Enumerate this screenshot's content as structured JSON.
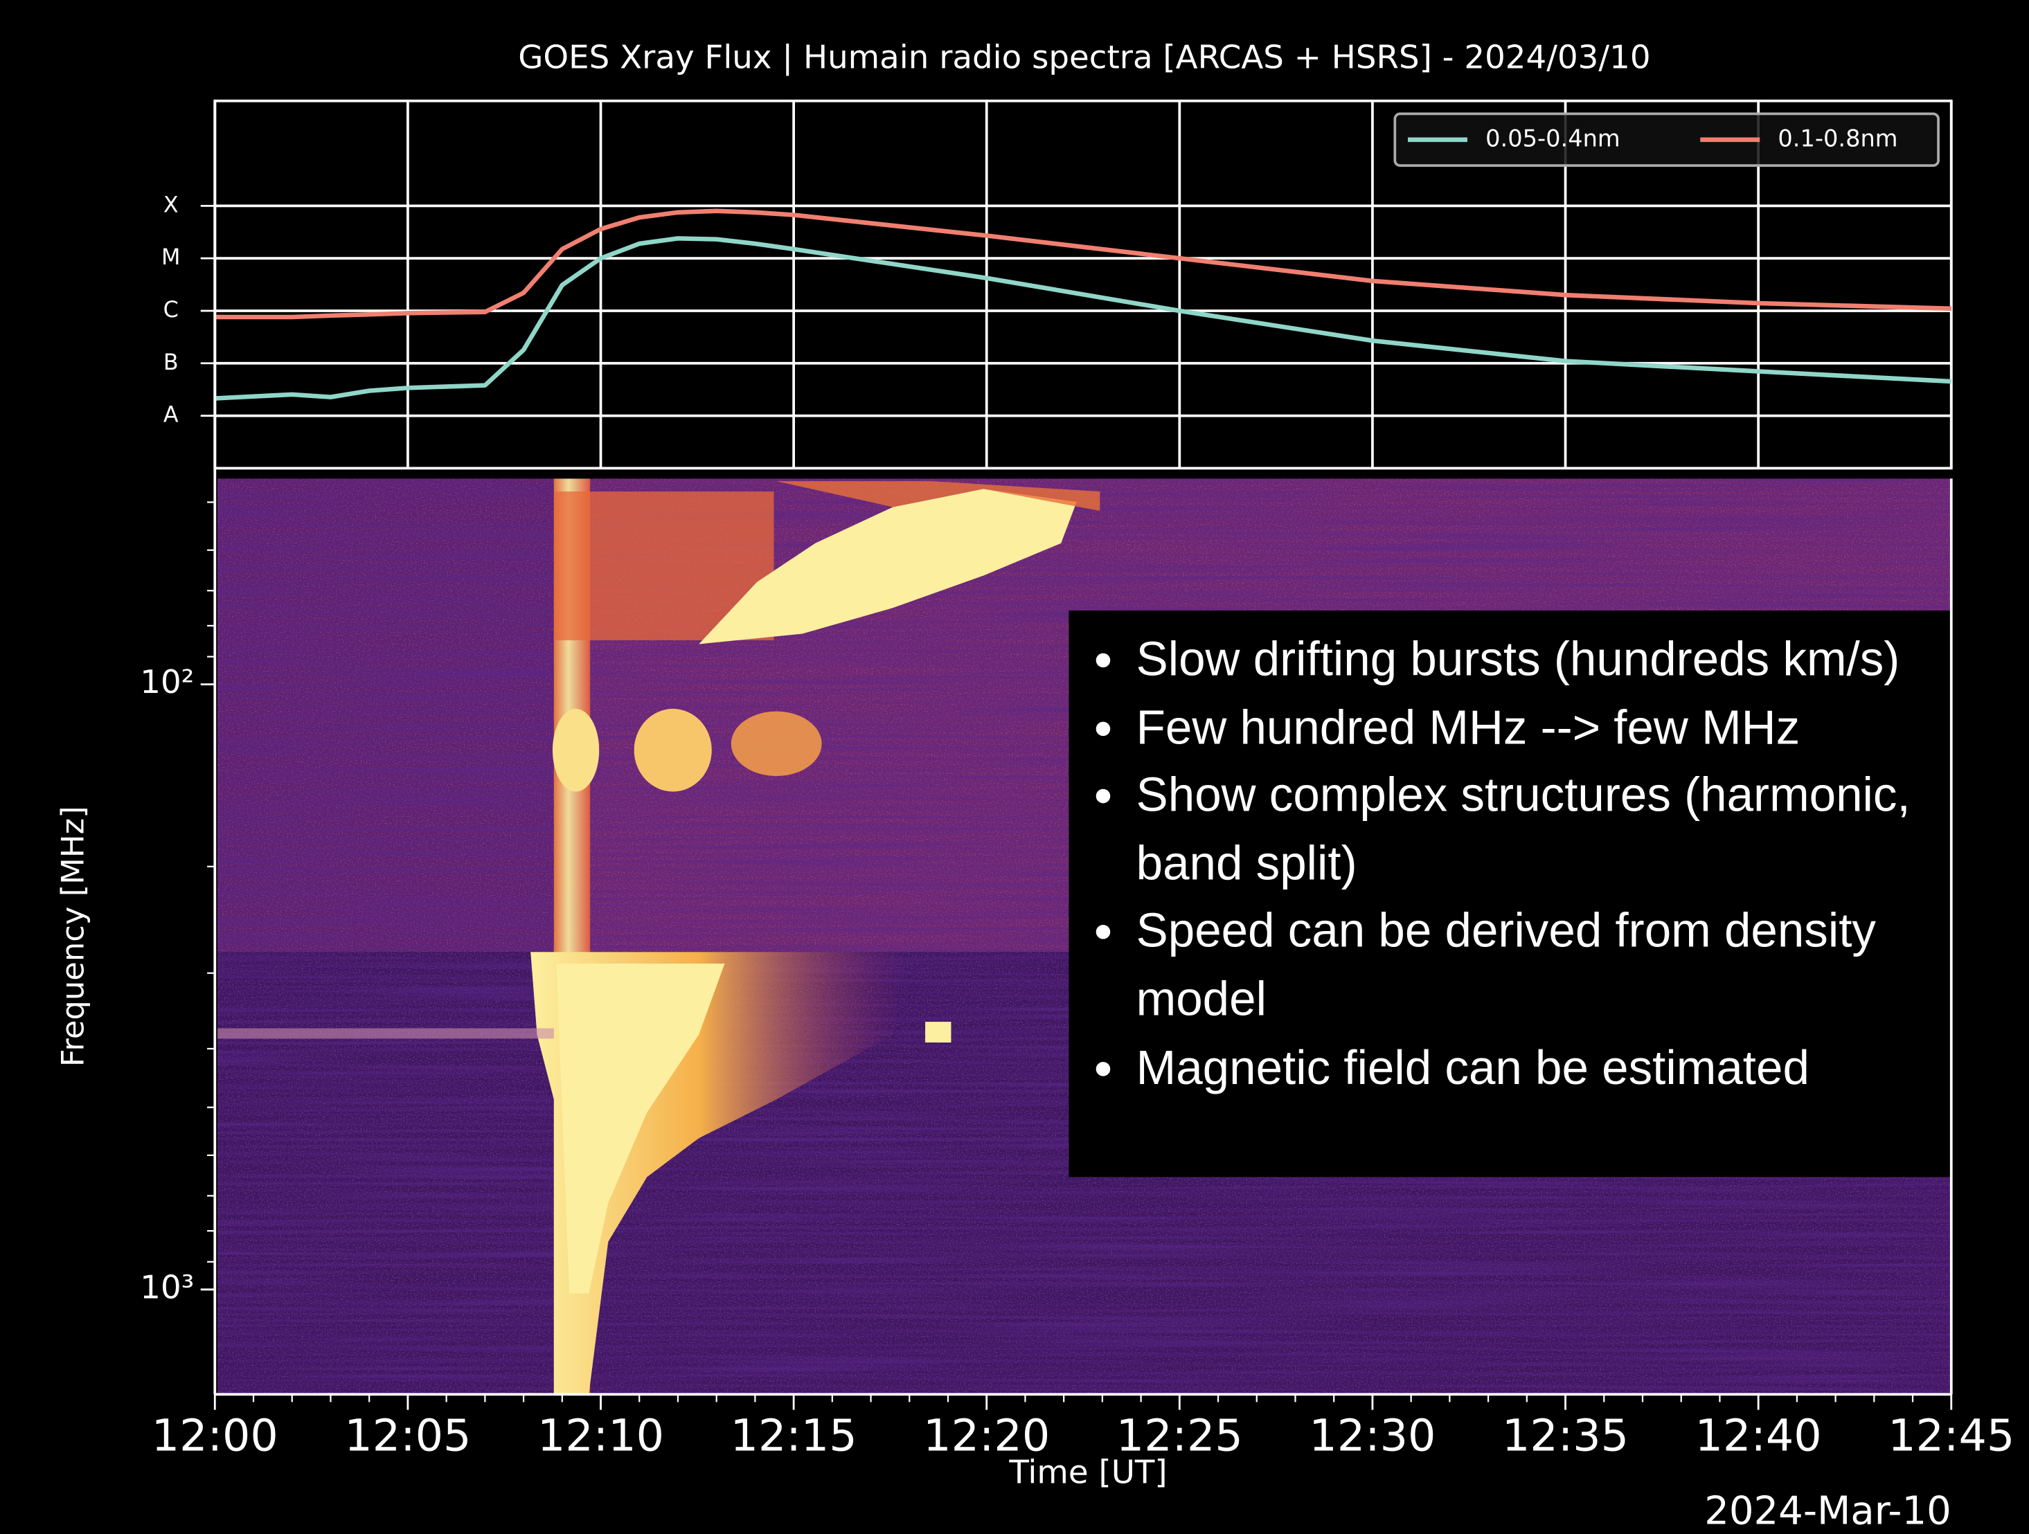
{
  "chart_data": [
    {
      "type": "line",
      "title": "GOES Xray Flux | Humain radio spectra [ARCAS + HSRS] - 2024/03/10",
      "x": [
        0,
        2,
        3,
        4,
        5,
        7,
        8,
        9,
        10,
        11,
        12,
        13,
        14,
        15,
        20,
        25,
        30,
        35,
        40,
        45
      ],
      "xlim": [
        0,
        45
      ],
      "xticks": [
        0,
        5,
        10,
        15,
        20,
        25,
        30,
        35,
        40,
        45
      ],
      "ylim": [
        1e-09,
        0.01
      ],
      "yscale": "log",
      "yticks": [
        {
          "value": 1e-08,
          "label": "A"
        },
        {
          "value": 1e-07,
          "label": "B"
        },
        {
          "value": 1e-06,
          "label": "C"
        },
        {
          "value": 1e-05,
          "label": "M"
        },
        {
          "value": 0.0001,
          "label": "X"
        }
      ],
      "grid": true,
      "legend": "upper right",
      "series": [
        {
          "name": "0.05-0.4nm",
          "color": "#8fd6c9",
          "values": [
            2.14e-08,
            2.54e-08,
            2.27e-08,
            3e-08,
            3.4e-08,
            3.8e-08,
            1.8e-07,
            3.1e-06,
            1e-05,
            1.9e-05,
            2.4e-05,
            2.3e-05,
            1.9e-05,
            1.5e-05,
            4.2e-06,
            1e-06,
            2.7e-07,
            1.1e-07,
            7e-08,
            4.5e-08
          ]
        },
        {
          "name": "0.1-0.8nm",
          "color": "#f07f70",
          "values": [
            7.6e-07,
            7.6e-07,
            8.1e-07,
            8.5e-07,
            9e-07,
            9.5e-07,
            2.2e-06,
            1.5e-05,
            3.6e-05,
            6e-05,
            7.5e-05,
            8e-05,
            7.5e-05,
            6.7e-05,
            2.7e-05,
            1e-05,
            3.7e-06,
            2e-06,
            1.4e-06,
            1.1e-06
          ]
        }
      ]
    },
    {
      "type": "heatmap",
      "xlim": [
        0,
        45
      ],
      "xticks": [
        {
          "value": 0,
          "label": "12:00"
        },
        {
          "value": 5,
          "label": "12:05"
        },
        {
          "value": 10,
          "label": "12:10"
        },
        {
          "value": 15,
          "label": "12:15"
        },
        {
          "value": 20,
          "label": "12:20"
        },
        {
          "value": 25,
          "label": "12:25"
        },
        {
          "value": 30,
          "label": "12:30"
        },
        {
          "value": 35,
          "label": "12:35"
        },
        {
          "value": 40,
          "label": "12:40"
        },
        {
          "value": 45,
          "label": "12:45"
        }
      ],
      "xlabel": "Time [UT]",
      "date_label": "2024-Mar-10",
      "ylabel": "Frequency [MHz]",
      "ylim": [
        1490,
        45.7
      ],
      "yscale": "log",
      "yticks": [
        {
          "value": 100,
          "label": "10²"
        },
        {
          "value": 1000,
          "label": "10³"
        }
      ],
      "annotations": [
        "Slow drifting bursts (hundreds km/s)",
        "Few hundred MHz --> few MHz",
        "Show complex structures (harmonic, band split)",
        "Speed can be derived from density model",
        "Magnetic field can be estimated"
      ]
    }
  ]
}
